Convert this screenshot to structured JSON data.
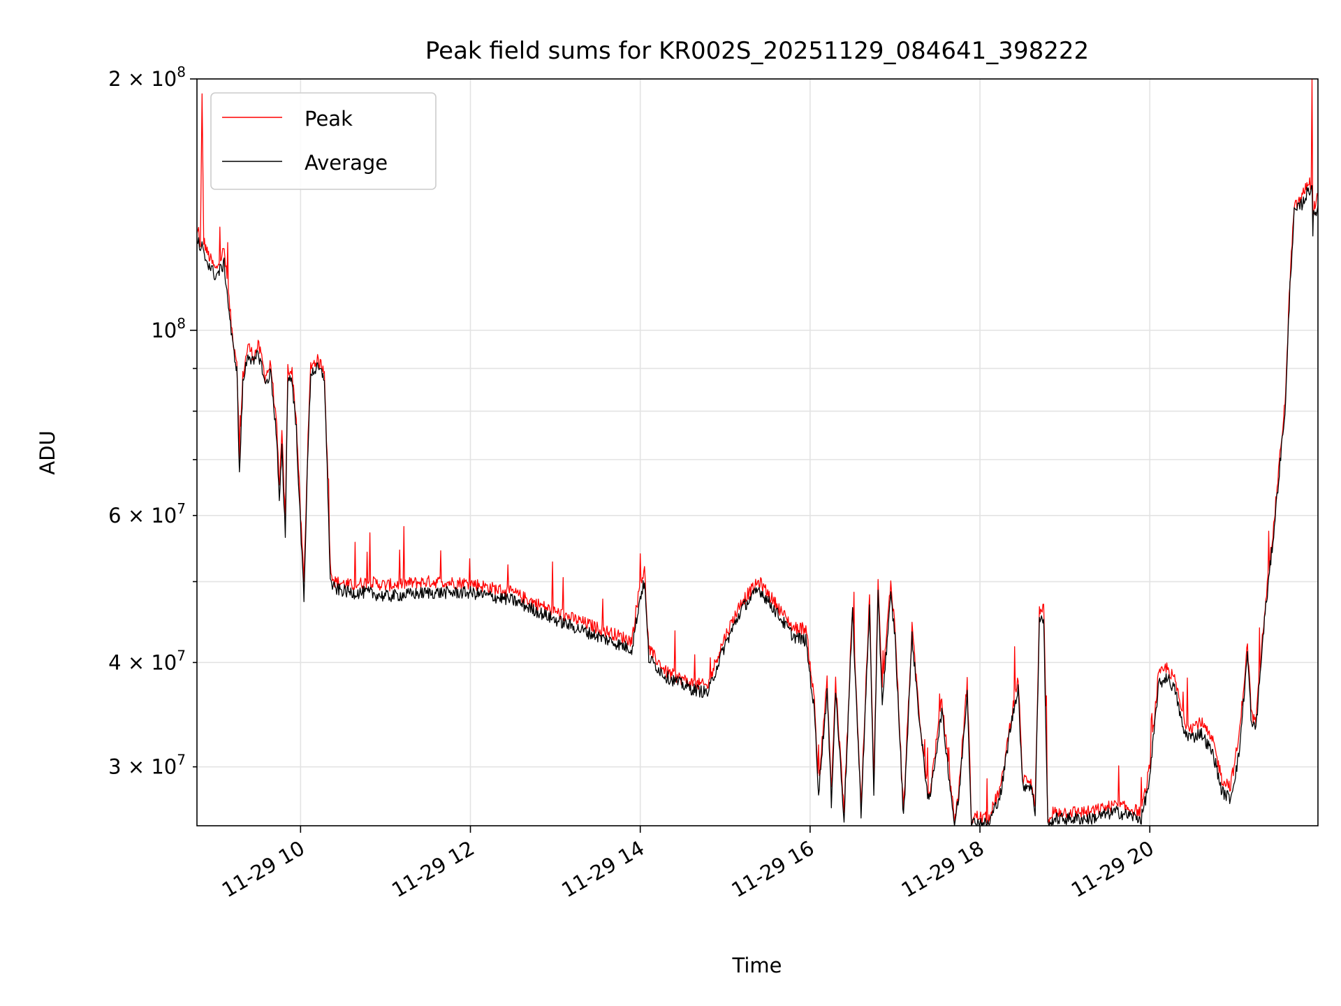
{
  "chart_data": {
    "type": "line",
    "title": "Peak field sums for KR002S_20251129_084641_398222",
    "xlabel": "Time",
    "ylabel": "ADU",
    "yscale": "log",
    "xlim": [
      8.78,
      21.98
    ],
    "ylim": [
      25500000,
      200000000
    ],
    "grid": true,
    "legend_position": "top-left",
    "x_ticks": [
      {
        "value": 10,
        "label": "11-29 10"
      },
      {
        "value": 12,
        "label": "11-29 12"
      },
      {
        "value": 14,
        "label": "11-29 14"
      },
      {
        "value": 16,
        "label": "11-29 16"
      },
      {
        "value": 18,
        "label": "11-29 18"
      },
      {
        "value": 20,
        "label": "11-29 20"
      }
    ],
    "y_ticks": [
      {
        "value": 200000000,
        "mantissa": "2",
        "exponent": "8",
        "major": true
      },
      {
        "value": 100000000,
        "mantissa": "",
        "exponent": "8",
        "major": true
      },
      {
        "value": 60000000,
        "mantissa": "6",
        "exponent": "7",
        "major": false
      },
      {
        "value": 40000000,
        "mantissa": "4",
        "exponent": "7",
        "major": false
      },
      {
        "value": 30000000,
        "mantissa": "3",
        "exponent": "7",
        "major": false
      }
    ],
    "y_minor_unlabeled": [
      90000000,
      80000000,
      70000000,
      50000000
    ],
    "series": [
      {
        "name": "Peak",
        "color": "#ff0000",
        "x": [
          8.78,
          8.8,
          8.82,
          8.84,
          8.86,
          8.9,
          9.0,
          9.1,
          9.2,
          9.25,
          9.28,
          9.32,
          9.38,
          9.45,
          9.5,
          9.55,
          9.58,
          9.65,
          9.72,
          9.75,
          9.78,
          9.82,
          9.85,
          9.9,
          9.95,
          10.0,
          10.04,
          10.08,
          10.12,
          10.2,
          10.28,
          10.33,
          10.35,
          10.4,
          10.6,
          10.8,
          11.0,
          11.5,
          12.0,
          12.5,
          13.0,
          13.5,
          13.9,
          14.0,
          14.05,
          14.1,
          14.3,
          14.6,
          14.8,
          14.9,
          15.0,
          15.2,
          15.4,
          15.6,
          15.8,
          15.95,
          16.05,
          16.1,
          16.2,
          16.25,
          16.3,
          16.4,
          16.5,
          16.6,
          16.7,
          16.75,
          16.8,
          16.85,
          16.95,
          17.0,
          17.1,
          17.2,
          17.3,
          17.4,
          17.45,
          17.55,
          17.7,
          17.75,
          17.85,
          17.9,
          17.95,
          18.1,
          18.25,
          18.35,
          18.45,
          18.5,
          18.6,
          18.65,
          18.7,
          18.75,
          18.8,
          18.83,
          18.86,
          19.0,
          19.3,
          19.6,
          19.9,
          20.0,
          20.05,
          20.1,
          20.2,
          20.3,
          20.4,
          20.5,
          20.6,
          20.75,
          20.85,
          20.95,
          21.05,
          21.15,
          21.2,
          21.25,
          21.35,
          21.45,
          21.6,
          21.65,
          21.7,
          21.8,
          21.85,
          21.9,
          21.91,
          21.92,
          21.93,
          21.96,
          21.98
        ],
        "y": [
          130000000,
          132000000,
          125000000,
          190000000,
          128000000,
          124000000,
          118000000,
          125000000,
          98000000,
          92000000,
          70000000,
          88000000,
          96000000,
          93000000,
          96000000,
          92000000,
          88000000,
          91000000,
          76000000,
          65000000,
          75000000,
          59000000,
          90000000,
          89000000,
          78000000,
          60000000,
          50000000,
          70000000,
          91000000,
          92000000,
          90000000,
          62000000,
          52000000,
          50000000,
          49500000,
          50000000,
          49500000,
          50000000,
          49800000,
          48500000,
          46000000,
          44000000,
          42500000,
          50000000,
          51500000,
          41500000,
          39000000,
          37800000,
          37500000,
          40500000,
          43000000,
          47500000,
          50000000,
          47000000,
          44000000,
          44000000,
          36000000,
          28500000,
          38000000,
          28000000,
          38000000,
          26500000,
          47000000,
          27000000,
          48000000,
          28500000,
          50000000,
          37000000,
          50000000,
          44000000,
          26500000,
          44000000,
          33500000,
          27500000,
          30000000,
          36000000,
          25900000,
          28000000,
          38000000,
          25900000,
          26200000,
          26000000,
          28500000,
          33500000,
          38500000,
          29000000,
          29000000,
          27000000,
          46000000,
          47000000,
          26000000,
          25700000,
          26500000,
          26500000,
          26500000,
          27000000,
          26500000,
          30000000,
          34000000,
          38500000,
          39500000,
          38000000,
          34000000,
          33500000,
          34000000,
          32000000,
          29000000,
          28500000,
          32500000,
          42000000,
          34500000,
          34000000,
          46000000,
          57000000,
          84000000,
          115000000,
          140000000,
          145000000,
          150000000,
          150000000,
          200000000,
          135000000,
          140000000,
          142000000,
          145000000
        ]
      },
      {
        "name": "Average",
        "color": "#000000",
        "x": [
          8.78,
          8.8,
          8.82,
          8.84,
          8.86,
          8.9,
          9.0,
          9.1,
          9.2,
          9.25,
          9.28,
          9.32,
          9.38,
          9.45,
          9.5,
          9.55,
          9.58,
          9.65,
          9.72,
          9.75,
          9.78,
          9.82,
          9.85,
          9.9,
          9.95,
          10.0,
          10.04,
          10.08,
          10.12,
          10.2,
          10.28,
          10.33,
          10.35,
          10.4,
          10.6,
          10.8,
          11.0,
          11.5,
          12.0,
          12.5,
          13.0,
          13.5,
          13.9,
          14.0,
          14.05,
          14.1,
          14.3,
          14.6,
          14.8,
          14.9,
          15.0,
          15.2,
          15.4,
          15.6,
          15.8,
          15.95,
          16.05,
          16.1,
          16.2,
          16.25,
          16.3,
          16.4,
          16.5,
          16.6,
          16.7,
          16.75,
          16.8,
          16.85,
          16.95,
          17.0,
          17.1,
          17.2,
          17.3,
          17.4,
          17.45,
          17.55,
          17.7,
          17.75,
          17.85,
          17.9,
          17.95,
          18.1,
          18.25,
          18.35,
          18.45,
          18.5,
          18.6,
          18.65,
          18.7,
          18.75,
          18.8,
          18.83,
          18.86,
          19.0,
          19.3,
          19.6,
          19.9,
          20.0,
          20.05,
          20.1,
          20.2,
          20.3,
          20.4,
          20.5,
          20.6,
          20.75,
          20.85,
          20.95,
          21.05,
          21.15,
          21.2,
          21.25,
          21.35,
          21.45,
          21.6,
          21.65,
          21.7,
          21.8,
          21.85,
          21.9,
          21.91,
          21.92,
          21.93,
          21.96,
          21.98
        ],
        "y": [
          127000000,
          128000000,
          123000000,
          126000000,
          123000000,
          121000000,
          116000000,
          120000000,
          96000000,
          90000000,
          67000000,
          86000000,
          94000000,
          91000000,
          94000000,
          90000000,
          86000000,
          89000000,
          74000000,
          62000000,
          72000000,
          57000000,
          88000000,
          87000000,
          76000000,
          58000000,
          48000000,
          68000000,
          89000000,
          90000000,
          88000000,
          60000000,
          50000000,
          49000000,
          48500000,
          48500000,
          48000000,
          48500000,
          48500000,
          47500000,
          45000000,
          43000000,
          41500000,
          48000000,
          50000000,
          40500000,
          38500000,
          37200000,
          36800000,
          39500000,
          42000000,
          46500000,
          49000000,
          46000000,
          43000000,
          42500000,
          35000000,
          28000000,
          37000000,
          27200000,
          37000000,
          26000000,
          46000000,
          26500000,
          46500000,
          28000000,
          48000000,
          36000000,
          48000000,
          43000000,
          26000000,
          43000000,
          33000000,
          27000000,
          29500000,
          35000000,
          25600000,
          27500000,
          37000000,
          25600000,
          25800000,
          25600000,
          28000000,
          33000000,
          37500000,
          28500000,
          28500000,
          26500000,
          45000000,
          45000000,
          25500000,
          25400000,
          26000000,
          26000000,
          26000000,
          26500000,
          26000000,
          29000000,
          33000000,
          37500000,
          38500000,
          37000000,
          33000000,
          32500000,
          33000000,
          31000000,
          28000000,
          27500000,
          31000000,
          41000000,
          33500000,
          33500000,
          45000000,
          56000000,
          82000000,
          113000000,
          138000000,
          142000000,
          146000000,
          148000000,
          150000000,
          132000000,
          137000000,
          139000000,
          141000000
        ]
      }
    ]
  }
}
